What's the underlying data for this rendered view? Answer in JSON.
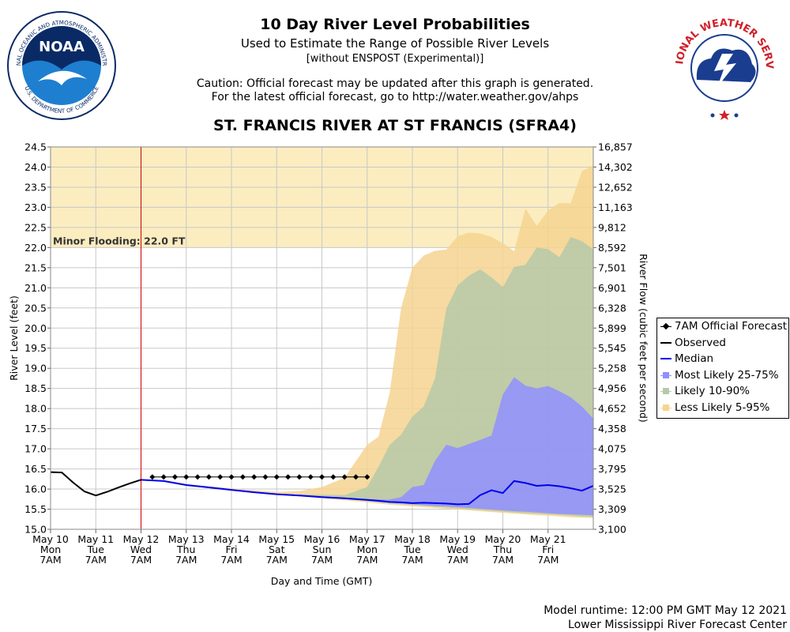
{
  "header": {
    "title": "10 Day River Level Probabilities",
    "subtitle": "Used to Estimate the Range of Possible River Levels",
    "subtitle2": "[without ENSPOST (Experimental)]",
    "caution1": "Caution: Official forecast may be updated after this graph is generated.",
    "caution2": "For the latest official forecast, go to http://water.weather.gov/ahps",
    "station": "ST. FRANCIS RIVER AT ST FRANCIS (SFRA4)"
  },
  "logos": {
    "noaa_text": "NOAA",
    "noaa_ring": "NATIONAL OCEANIC AND ATMOSPHERIC ADMINISTRATION",
    "noaa_ring_bottom": "U.S. DEPARTMENT OF COMMERCE",
    "nws_ring": "NATIONAL WEATHER SERVICE"
  },
  "footer": {
    "runtime": "Model runtime: 12:00 PM GMT May 12 2021",
    "center": "Lower Mississippi River Forecast Center"
  },
  "legend": {
    "items": [
      {
        "label": "7AM Official Forecast",
        "symbol": "diamond-line",
        "color": "#000000"
      },
      {
        "label": "Observed",
        "symbol": "line",
        "color": "#000000"
      },
      {
        "label": "Median",
        "symbol": "line",
        "color": "#0000ee"
      },
      {
        "label": "Most Likely 25-75%",
        "symbol": "square",
        "color": "#8f8fff"
      },
      {
        "label": "Likely 10-90%",
        "symbol": "square",
        "color": "#b5c9a8"
      },
      {
        "label": "Less Likely 5-95%",
        "symbol": "square",
        "color": "#f5d490"
      }
    ]
  },
  "chart_data": {
    "type": "area",
    "xlabel": "Day and Time (GMT)",
    "ylabel": "River Level (feet)",
    "ylabel_right": "River Flow (cubic feet per second)",
    "ylim": [
      15.0,
      24.5
    ],
    "xlim": [
      "2021-05-10 07:00",
      "2021-05-22 07:00"
    ],
    "y_ticks": [
      "15.0",
      "15.5",
      "16.0",
      "16.5",
      "17.0",
      "17.5",
      "18.0",
      "18.5",
      "19.0",
      "19.5",
      "20.0",
      "20.5",
      "21.0",
      "21.5",
      "22.0",
      "22.5",
      "23.0",
      "23.5",
      "24.0",
      "24.5"
    ],
    "y_ticks_right": [
      "3,100",
      "3,309",
      "3,525",
      "3,795",
      "4,075",
      "4,358",
      "4,652",
      "4,956",
      "5,258",
      "5,545",
      "5,899",
      "6,328",
      "6,901",
      "7,501",
      "8,592",
      "9,812",
      "11,163",
      "12,652",
      "14,302",
      "16,857"
    ],
    "x_ticks": [
      {
        "date": "May 10",
        "day": "Mon",
        "time": "7AM"
      },
      {
        "date": "May 11",
        "day": "Tue",
        "time": "7AM"
      },
      {
        "date": "May 12",
        "day": "Wed",
        "time": "7AM"
      },
      {
        "date": "May 13",
        "day": "Thu",
        "time": "7AM"
      },
      {
        "date": "May 14",
        "day": "Fri",
        "time": "7AM"
      },
      {
        "date": "May 15",
        "day": "Sat",
        "time": "7AM"
      },
      {
        "date": "May 16",
        "day": "Sun",
        "time": "7AM"
      },
      {
        "date": "May 17",
        "day": "Mon",
        "time": "7AM"
      },
      {
        "date": "May 18",
        "day": "Tue",
        "time": "7AM"
      },
      {
        "date": "May 19",
        "day": "Wed",
        "time": "7AM"
      },
      {
        "date": "May 20",
        "day": "Thu",
        "time": "7AM"
      },
      {
        "date": "May 21",
        "day": "Fri",
        "time": "7AM"
      }
    ],
    "flood_stage": {
      "label": "Minor Flooding: 22.0 FT",
      "value": 22.0,
      "color": "#fbedc0"
    },
    "current_time": "May 12 7AM",
    "grid": true,
    "legend_position": "right",
    "colors": {
      "observed": "#000000",
      "forecast": "#000000",
      "median": "#0000ee",
      "band_25_75": "#8f8fff",
      "band_10_90": "#b5c9a8",
      "band_5_95": "#f5d490",
      "now_line": "#cc0000"
    },
    "observed": {
      "x": [
        0,
        0.25,
        0.5,
        0.75,
        1.0,
        1.25,
        1.5,
        1.75,
        2.0
      ],
      "y": [
        16.42,
        16.41,
        16.16,
        15.94,
        15.84,
        15.93,
        16.04,
        16.14,
        16.23
      ]
    },
    "official_forecast": {
      "x": [
        2.25,
        2.5,
        2.75,
        3.0,
        3.25,
        3.5,
        3.75,
        4.0,
        4.25,
        4.5,
        4.75,
        5.0,
        5.25,
        5.5,
        5.75,
        6.0,
        6.25,
        6.5,
        6.75,
        7.0
      ],
      "y": [
        16.3,
        16.3,
        16.3,
        16.3,
        16.3,
        16.3,
        16.3,
        16.3,
        16.3,
        16.3,
        16.3,
        16.3,
        16.3,
        16.3,
        16.3,
        16.3,
        16.3,
        16.3,
        16.3,
        16.3
      ]
    },
    "x_days": [
      2.0,
      2.5,
      3.0,
      3.5,
      4.0,
      4.5,
      5.0,
      5.5,
      6.0,
      6.5,
      7.0,
      7.25,
      7.5,
      7.75,
      8.0,
      8.25,
      8.5,
      8.75,
      9.0,
      9.25,
      9.5,
      9.75,
      10.0,
      10.25,
      10.5,
      10.75,
      11.0,
      11.25,
      11.5,
      11.75,
      12.0
    ],
    "median": [
      16.23,
      16.2,
      16.1,
      16.04,
      15.98,
      15.92,
      15.87,
      15.84,
      15.8,
      15.77,
      15.73,
      15.71,
      15.68,
      15.67,
      15.65,
      15.66,
      15.65,
      15.64,
      15.62,
      15.63,
      15.85,
      15.97,
      15.9,
      16.2,
      16.15,
      16.08,
      16.1,
      16.07,
      16.02,
      15.96,
      16.08
    ],
    "p25": [
      16.23,
      16.2,
      16.1,
      16.04,
      15.98,
      15.92,
      15.87,
      15.84,
      15.8,
      15.76,
      15.71,
      15.68,
      15.66,
      15.64,
      15.62,
      15.6,
      15.58,
      15.57,
      15.55,
      15.53,
      15.51,
      15.49,
      15.47,
      15.45,
      15.44,
      15.42,
      15.4,
      15.38,
      15.37,
      15.36,
      15.35
    ],
    "p75": [
      16.23,
      16.2,
      16.1,
      16.04,
      15.98,
      15.92,
      15.87,
      15.84,
      15.8,
      15.77,
      15.75,
      15.74,
      15.74,
      15.8,
      16.05,
      16.1,
      16.7,
      17.1,
      17.02,
      17.12,
      17.22,
      17.33,
      18.35,
      18.78,
      18.57,
      18.5,
      18.56,
      18.43,
      18.28,
      18.05,
      17.75
    ],
    "p10": [
      16.23,
      16.2,
      16.1,
      16.04,
      15.98,
      15.92,
      15.87,
      15.83,
      15.79,
      15.75,
      15.7,
      15.67,
      15.64,
      15.62,
      15.6,
      15.58,
      15.56,
      15.54,
      15.52,
      15.5,
      15.48,
      15.46,
      15.44,
      15.42,
      15.4,
      15.39,
      15.37,
      15.36,
      15.34,
      15.32,
      15.31
    ],
    "p90": [
      16.23,
      16.21,
      16.11,
      16.05,
      15.99,
      15.93,
      15.88,
      15.86,
      15.86,
      15.85,
      16.05,
      16.55,
      17.1,
      17.35,
      17.8,
      18.05,
      18.75,
      20.48,
      21.06,
      21.3,
      21.46,
      21.26,
      21.02,
      21.52,
      21.57,
      22.0,
      21.96,
      21.76,
      22.26,
      22.16,
      21.95
    ],
    "p5": [
      16.23,
      16.2,
      16.1,
      16.03,
      15.97,
      15.91,
      15.85,
      15.82,
      15.77,
      15.72,
      15.67,
      15.64,
      15.61,
      15.59,
      15.57,
      15.55,
      15.53,
      15.51,
      15.49,
      15.47,
      15.45,
      15.43,
      15.41,
      15.39,
      15.37,
      15.35,
      15.34,
      15.32,
      15.3,
      15.29,
      15.28
    ],
    "p95": [
      16.23,
      16.22,
      16.13,
      16.07,
      16.02,
      15.97,
      15.93,
      15.95,
      16.05,
      16.28,
      17.1,
      17.3,
      18.4,
      20.5,
      21.5,
      21.8,
      21.92,
      21.95,
      22.28,
      22.37,
      22.35,
      22.26,
      22.11,
      21.91,
      22.97,
      22.54,
      22.92,
      23.11,
      23.1,
      23.9,
      24.04
    ]
  }
}
